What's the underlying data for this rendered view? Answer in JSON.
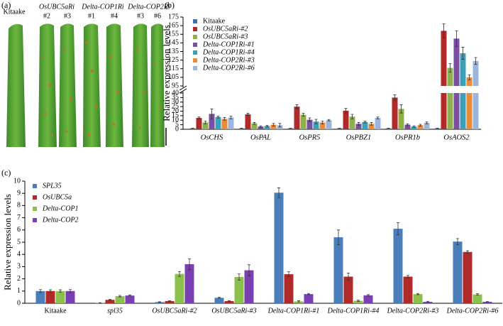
{
  "panel_labels": [
    "(a)",
    "(b)",
    "(c)"
  ],
  "leaf_image": {
    "labels": [
      "Kitaake",
      "OsUBC5aRi",
      "#2",
      "#3",
      "Delta-COP1Ri",
      "#1",
      "#4",
      "Delta-COP2Ri",
      "#3",
      "#6"
    ]
  },
  "chart_data": [
    {
      "type": "bar",
      "ylabel": "Relative expression levels",
      "categories": [
        "OsCHS",
        "OsPAL",
        "OsPR5",
        "OsPBZ1",
        "OsPR1b",
        "OsAOS2"
      ],
      "series": [
        {
          "name": "Kitaake",
          "color": "#3f6fb5",
          "values": [
            1,
            1,
            1,
            1,
            1,
            1
          ],
          "errors": [
            0.2,
            0.2,
            0.2,
            0.2,
            0.2,
            0.2
          ]
        },
        {
          "name": "OsUBC5aRi-#2",
          "color": "#b02a2a",
          "values": [
            12.5,
            16.5,
            25,
            20.5,
            35,
            159
          ],
          "errors": [
            1,
            1.2,
            2,
            2.5,
            3,
            8
          ]
        },
        {
          "name": "OsUBC5aRi-#3",
          "color": "#8db04b",
          "values": [
            7.5,
            6.5,
            16,
            14,
            22.5,
            116
          ],
          "errors": [
            1.5,
            1,
            1.5,
            2.5,
            4.5,
            5
          ]
        },
        {
          "name": "Delta-COP1Ri-#1",
          "color": "#7a4fa0",
          "values": [
            17,
            3,
            10.5,
            6,
            5,
            150
          ],
          "errors": [
            5.5,
            0.8,
            2,
            1.5,
            1,
            9
          ]
        },
        {
          "name": "Delta-COP1Ri-#4",
          "color": "#3aa1b8",
          "values": [
            13.5,
            3.5,
            8.5,
            8,
            3,
            133
          ],
          "errors": [
            1,
            0.8,
            2.5,
            1,
            0.8,
            7
          ]
        },
        {
          "name": "Delta-COP2Ri-#3",
          "color": "#e88b3a",
          "values": [
            11.5,
            5,
            7.5,
            6,
            4.5,
            105
          ],
          "errors": [
            1.5,
            1.5,
            1.5,
            1.5,
            1,
            3
          ]
        },
        {
          "name": "Delta-COP2Ri-#6",
          "color": "#9cb5dc",
          "values": [
            13,
            4.5,
            10,
            12.5,
            7,
            124
          ],
          "errors": [
            1.5,
            2,
            0.8,
            1,
            1,
            4
          ]
        }
      ],
      "ylim": [
        0,
        175
      ],
      "ybreak": [
        40,
        95
      ],
      "yticks": [
        0,
        5,
        10,
        15,
        20,
        25,
        30,
        35,
        40,
        95,
        105,
        115,
        125,
        135,
        145,
        155,
        165,
        175
      ]
    },
    {
      "type": "bar",
      "ylabel": "Relative expression levels",
      "categories": [
        "Kitaake",
        "spl35",
        "OsUBC5aRi-#2",
        "OsUBC5aRi-#3",
        "Delta-COP1Ri-#1",
        "Delta-COP1Ri-#4",
        "Delta-COP2Ri-#3",
        "Delta-COP2Ri-#6"
      ],
      "series": [
        {
          "name": "SPL35",
          "color": "#4a7ebb",
          "values": [
            1,
            0.03,
            0.1,
            0.45,
            9.05,
            5.4,
            6.1,
            5.05
          ],
          "errors": [
            0.12,
            0.01,
            0.02,
            0.05,
            0.4,
            0.6,
            0.5,
            0.25
          ]
        },
        {
          "name": "OsUBC5a",
          "color": "#b02a2a",
          "values": [
            1,
            0.28,
            0.18,
            0.18,
            2.38,
            2.18,
            2.18,
            4.2
          ],
          "errors": [
            0.1,
            0.03,
            0.02,
            0.02,
            0.2,
            0.3,
            0.1,
            0.1
          ]
        },
        {
          "name": "Delta-COP1",
          "color": "#8cc04d",
          "values": [
            1,
            0.58,
            2.4,
            2.15,
            0.15,
            0.2,
            0.75,
            0.72
          ],
          "errors": [
            0.1,
            0.06,
            0.2,
            0.25,
            0.05,
            0.05,
            0.05,
            0.06
          ]
        },
        {
          "name": "Delta-COP2",
          "color": "#7a3fb0",
          "values": [
            1,
            0.63,
            3.2,
            2.7,
            0.75,
            0.65,
            0.12,
            0.12
          ],
          "errors": [
            0.12,
            0.05,
            0.45,
            0.45,
            0.05,
            0.06,
            0.04,
            0.02
          ]
        }
      ],
      "ylim": [
        0,
        10
      ],
      "yticks": [
        0,
        1,
        2,
        3,
        4,
        5,
        6,
        7,
        8,
        9,
        10
      ]
    }
  ]
}
